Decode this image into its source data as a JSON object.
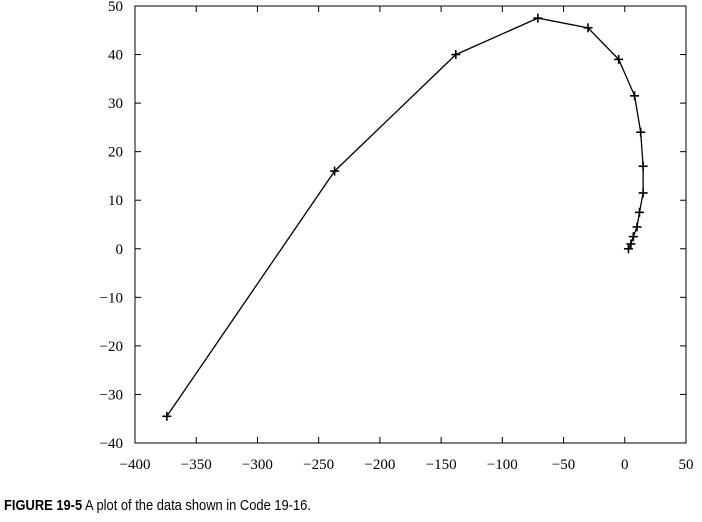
{
  "chart_data": {
    "type": "line",
    "title": "",
    "xlabel": "",
    "ylabel": "",
    "xlim": [
      -400,
      50
    ],
    "ylim": [
      -40,
      50
    ],
    "grid": false,
    "legend": "none",
    "marker": "plus",
    "line_color": "#000000",
    "x_ticks": [
      -400,
      -350,
      -300,
      -250,
      -200,
      -150,
      -100,
      -50,
      0,
      50
    ],
    "x_tick_labels": [
      "−400",
      "−350",
      "−300",
      "−250",
      "−200",
      "−150",
      "−100",
      "−50",
      "0",
      "50"
    ],
    "y_ticks": [
      -40,
      -30,
      -20,
      -10,
      0,
      10,
      20,
      30,
      40,
      50
    ],
    "y_tick_labels": [
      "−40",
      "−30",
      "−20",
      "−10",
      "0",
      "10",
      "20",
      "30",
      "40",
      "50"
    ],
    "series": [
      {
        "x": [
          -374,
          -237,
          -138,
          -71,
          -30,
          -5,
          8,
          13,
          15,
          15,
          12,
          10,
          7,
          5,
          3
        ],
        "y": [
          -34.5,
          16,
          40,
          47.5,
          45.5,
          39,
          31.5,
          24,
          17,
          11.5,
          7.5,
          4.5,
          2.5,
          1,
          0
        ]
      }
    ]
  },
  "caption": {
    "label": "FIGURE 19-5",
    "text": "A plot of the data shown in Code 19-16."
  }
}
